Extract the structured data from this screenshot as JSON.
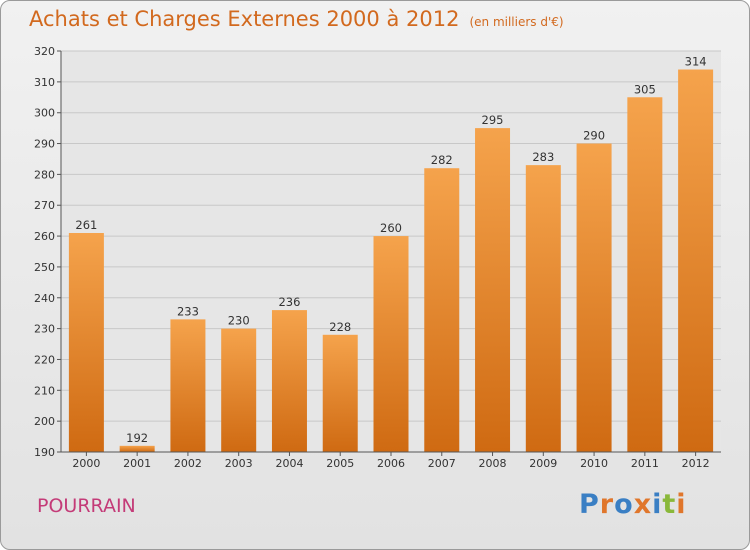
{
  "title": "Achats et Charges Externes 2000 à 2012",
  "subtitle": "(en milliers d'€)",
  "location": "POURRAIN",
  "logo": {
    "text": "Proxiti",
    "letter_colors": [
      "#3a7fc4",
      "#e0762b",
      "#3a7fc4",
      "#e0762b",
      "#3a7fc4",
      "#8ab83a",
      "#e0762b"
    ]
  },
  "colors": {
    "bar_top": "#f5a34c",
    "bar_bottom": "#cf6a12",
    "title": "#d2691e",
    "location": "#c43b78",
    "plot_bg": "#e6e6e6",
    "grid": "#c8c8c8"
  },
  "chart_data": {
    "type": "bar",
    "title": "Achats et Charges Externes 2000 à 2012",
    "subtitle": "(en milliers d'€)",
    "xlabel": "",
    "ylabel": "",
    "categories": [
      "2000",
      "2001",
      "2002",
      "2003",
      "2004",
      "2005",
      "2006",
      "2007",
      "2008",
      "2009",
      "2010",
      "2011",
      "2012"
    ],
    "values": [
      261,
      192,
      233,
      230,
      236,
      228,
      260,
      282,
      295,
      283,
      290,
      305,
      314
    ],
    "ylim": [
      190,
      320
    ],
    "yticks": [
      190,
      200,
      210,
      220,
      230,
      240,
      250,
      260,
      270,
      280,
      290,
      300,
      310,
      320
    ],
    "grid": true,
    "legend": "none"
  }
}
